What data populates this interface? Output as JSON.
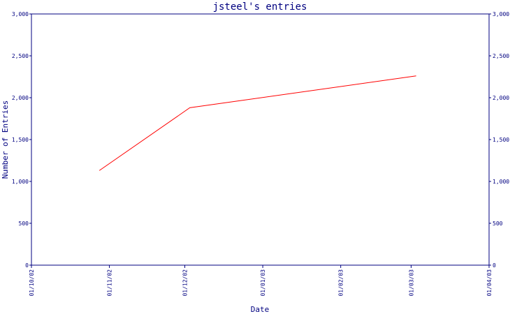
{
  "chart_data": {
    "type": "line",
    "title": "jsteel's entries",
    "xlabel": "Date",
    "ylabel": "Number of Entries",
    "x_ticks": [
      "01/10/02",
      "01/11/02",
      "01/12/02",
      "01/01/03",
      "01/02/03",
      "01/03/03",
      "01/04/03"
    ],
    "y_ticks": [
      "0",
      "500",
      "1,000",
      "1,500",
      "2,000",
      "2,500",
      "3,000"
    ],
    "ylim": [
      0,
      3000
    ],
    "series": [
      {
        "color": "#ff0000",
        "points": [
          {
            "x": "2002-10-28",
            "y": 1130
          },
          {
            "x": "2002-12-03",
            "y": 1880
          },
          {
            "x": "2003-03-03",
            "y": 2260
          }
        ]
      }
    ],
    "grid": false,
    "colors": {
      "axis": "#000080",
      "line": "#ff0000"
    }
  }
}
